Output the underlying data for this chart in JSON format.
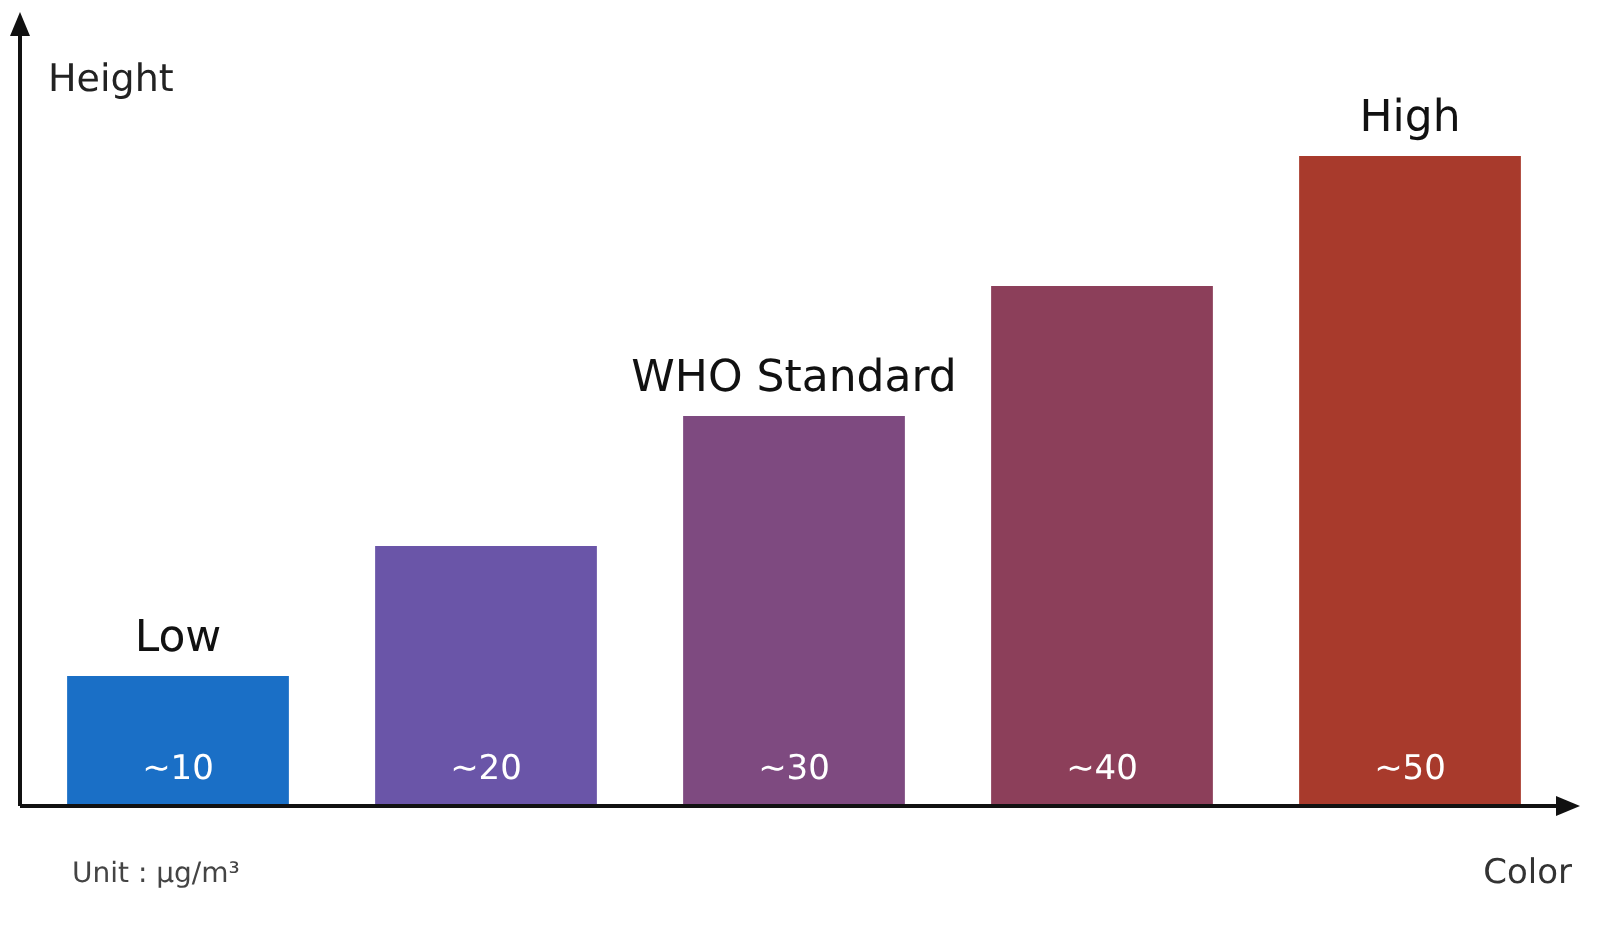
{
  "chart_data": {
    "type": "bar",
    "xlabel": "Color",
    "ylabel": "Height",
    "categories": [
      null,
      null,
      null,
      null,
      null
    ],
    "values": [
      10,
      20,
      30,
      40,
      50
    ],
    "colors": [
      "#1a6fc6",
      "#6a55a8",
      "#7e4a80",
      "#8c3f5a",
      "#a83a2c"
    ],
    "value_labels": [
      "~10",
      "~20",
      "~30",
      "~40",
      "~50"
    ],
    "annotations": [
      {
        "text": "Low",
        "y": 10
      },
      {
        "text": "WHO Standard",
        "y": 30
      },
      {
        "text": "High",
        "y": 50
      },
      "Unit : μg/m³"
    ],
    "grid": false
  }
}
